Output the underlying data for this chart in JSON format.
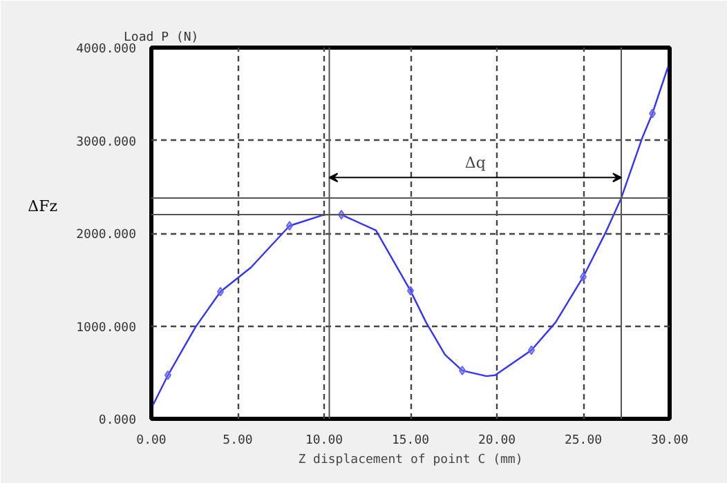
{
  "chart_data": {
    "type": "line",
    "xlabel": "Z displacement of point C (mm)",
    "ylabel": "Load P (N)",
    "xlim": [
      0,
      30
    ],
    "ylim": [
      0,
      4000
    ],
    "xticks": [
      {
        "value": 0,
        "label": "0.00"
      },
      {
        "value": 5,
        "label": "5.00"
      },
      {
        "value": 10,
        "label": "10.00"
      },
      {
        "value": 15,
        "label": "15.00"
      },
      {
        "value": 20,
        "label": "20.00"
      },
      {
        "value": 25,
        "label": "25.00"
      },
      {
        "value": 30,
        "label": "30.00"
      }
    ],
    "yticks": [
      {
        "value": 0,
        "label": "0.000"
      },
      {
        "value": 1000,
        "label": "1000.000"
      },
      {
        "value": 2000,
        "label": "2000.000"
      },
      {
        "value": 3000,
        "label": "3000.000"
      },
      {
        "value": 4000,
        "label": "4000.000"
      }
    ],
    "grid": true,
    "series": [
      {
        "type": "line",
        "color": "#3333ff",
        "marker": "none",
        "x": [
          0.1,
          0.96,
          2.56,
          4.0,
          5.76,
          8.0,
          10.0,
          11.0,
          13.0,
          15.0,
          15.9,
          17.0,
          18.0,
          19.4,
          19.9,
          22.0,
          23.4,
          25.0,
          26.3,
          27.2,
          28.4,
          29.0,
          29.9
        ],
        "values": [
          150,
          470,
          990,
          1370,
          1630,
          2080,
          2200,
          2200,
          2030,
          1380,
          1040,
          690,
          520,
          460,
          470,
          740,
          1040,
          1530,
          2010,
          2380,
          3020,
          3290,
          3790
        ]
      },
      {
        "type": "scatter",
        "color": "#6666ff",
        "marker": "diamond",
        "x": [
          0.96,
          4.0,
          8.0,
          11.0,
          15.0,
          18.0,
          22.0,
          25.0,
          29.0
        ],
        "values": [
          470,
          1370,
          2080,
          2200,
          1380,
          520,
          740,
          1530,
          3290
        ]
      }
    ],
    "ref_lines": [
      {
        "axis": "y",
        "value": 2200,
        "color": "#555555"
      },
      {
        "axis": "y",
        "value": 2380,
        "color": "#555555"
      },
      {
        "axis": "x",
        "value": 10.3,
        "color": "#555555"
      },
      {
        "axis": "x",
        "value": 27.2,
        "color": "#555555"
      }
    ],
    "annotations": [
      "Δq",
      "ΔFz"
    ]
  }
}
